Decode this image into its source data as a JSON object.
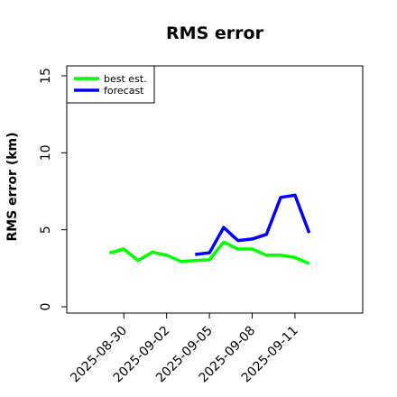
{
  "chart_data": {
    "type": "line",
    "title": "RMS error",
    "xlabel": "",
    "ylabel": "RMS error (km)",
    "ylim": [
      0,
      15
    ],
    "yticks": [
      0,
      5,
      10,
      15
    ],
    "xlim": [
      "2025-08-26T00:00",
      "2025-09-15T18:00"
    ],
    "xticks": [
      "2025-08-30",
      "2025-09-02",
      "2025-09-05",
      "2025-09-08",
      "2025-09-11"
    ],
    "grid": false,
    "legend": "top-left",
    "series": [
      {
        "name": "best est.",
        "color": "#00ff00",
        "x": [
          "2025-08-29",
          "2025-08-30",
          "2025-08-31",
          "2025-09-01",
          "2025-09-02",
          "2025-09-03",
          "2025-09-04",
          "2025-09-05",
          "2025-09-06",
          "2025-09-07",
          "2025-09-08",
          "2025-09-09",
          "2025-09-10",
          "2025-09-11",
          "2025-09-12"
        ],
        "values": [
          3.5,
          3.75,
          3.0,
          3.55,
          3.35,
          2.95,
          3.0,
          3.05,
          4.2,
          3.75,
          3.75,
          3.35,
          3.35,
          3.2,
          2.8
        ]
      },
      {
        "name": "forecast",
        "color": "#0000ff",
        "x": [
          "2025-09-04",
          "2025-09-05",
          "2025-09-06",
          "2025-09-07",
          "2025-09-08",
          "2025-09-09",
          "2025-09-10",
          "2025-09-11",
          "2025-09-12"
        ],
        "values": [
          3.4,
          3.5,
          5.15,
          4.3,
          4.4,
          4.7,
          7.1,
          7.25,
          4.8
        ]
      }
    ]
  }
}
